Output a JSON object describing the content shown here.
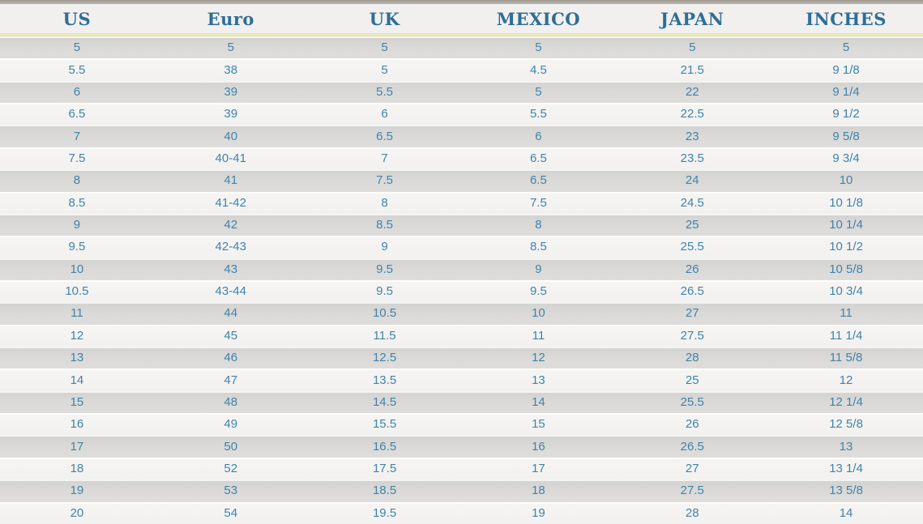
{
  "colors": {
    "header_text": "#2e6e96",
    "cell_text": "#3f83ab",
    "row_dark": "#dbdad8",
    "row_light": "#f3f2f0",
    "header_background": "#f1f0ee",
    "divider_yellow": "#e7e4ac",
    "top_strip_gray": "#a8a49d"
  },
  "chart_data": {
    "type": "table",
    "title": "",
    "columns": [
      "US",
      "Euro",
      "UK",
      "MEXICO",
      "JAPAN",
      "INCHES"
    ],
    "rows": [
      [
        "5",
        "5",
        "5",
        "5",
        "5",
        "5"
      ],
      [
        "5.5",
        "38",
        "5",
        "4.5",
        "21.5",
        "9 1/8"
      ],
      [
        "6",
        "39",
        "5.5",
        "5",
        "22",
        "9 1/4"
      ],
      [
        "6.5",
        "39",
        "6",
        "5.5",
        "22.5",
        "9 1/2"
      ],
      [
        "7",
        "40",
        "6.5",
        "6",
        "23",
        "9 5/8"
      ],
      [
        "7.5",
        "40-41",
        "7",
        "6.5",
        "23.5",
        "9 3/4"
      ],
      [
        "8",
        "41",
        "7.5",
        "6.5",
        "24",
        "10"
      ],
      [
        "8.5",
        "41-42",
        "8",
        "7.5",
        "24.5",
        "10 1/8"
      ],
      [
        "9",
        "42",
        "8.5",
        "8",
        "25",
        "10 1/4"
      ],
      [
        "9.5",
        "42-43",
        "9",
        "8.5",
        "25.5",
        "10 1/2"
      ],
      [
        "10",
        "43",
        "9.5",
        "9",
        "26",
        "10 5/8"
      ],
      [
        "10.5",
        "43-44",
        "9.5",
        "9.5",
        "26.5",
        "10 3/4"
      ],
      [
        "11",
        "44",
        "10.5",
        "10",
        "27",
        "11"
      ],
      [
        "12",
        "45",
        "11.5",
        "11",
        "27.5",
        "11 1/4"
      ],
      [
        "13",
        "46",
        "12.5",
        "12",
        "28",
        "11 5/8"
      ],
      [
        "14",
        "47",
        "13.5",
        "13",
        "25",
        "12"
      ],
      [
        "15",
        "48",
        "14.5",
        "14",
        "25.5",
        "12 1/4"
      ],
      [
        "16",
        "49",
        "15.5",
        "15",
        "26",
        "12 5/8"
      ],
      [
        "17",
        "50",
        "16.5",
        "16",
        "26.5",
        "13"
      ],
      [
        "18",
        "52",
        "17.5",
        "17",
        "27",
        "13 1/4"
      ],
      [
        "19",
        "53",
        "18.5",
        "18",
        "27.5",
        "13 5/8"
      ],
      [
        "20",
        "54",
        "19.5",
        "19",
        "28",
        "14"
      ]
    ]
  }
}
